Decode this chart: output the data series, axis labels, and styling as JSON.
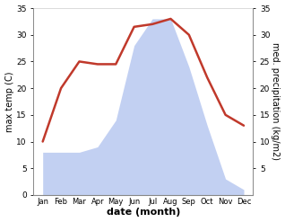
{
  "months": [
    "Jan",
    "Feb",
    "Mar",
    "Apr",
    "May",
    "Jun",
    "Jul",
    "Aug",
    "Sep",
    "Oct",
    "Nov",
    "Dec"
  ],
  "temperature": [
    10,
    20,
    25,
    24.5,
    24.5,
    31.5,
    32,
    33,
    30,
    22,
    15,
    13
  ],
  "precipitation": [
    8,
    8,
    8,
    9,
    14,
    28,
    33,
    33,
    24,
    13,
    3,
    1
  ],
  "temp_color": "#c0392b",
  "precip_color": "#b8c8f0",
  "ylim_left": [
    0,
    35
  ],
  "ylim_right": [
    0,
    35
  ],
  "yticks": [
    0,
    5,
    10,
    15,
    20,
    25,
    30,
    35
  ],
  "xlabel": "date (month)",
  "ylabel_left": "max temp (C)",
  "ylabel_right": "med. precipitation (kg/m2)",
  "background_color": "#ffffff"
}
